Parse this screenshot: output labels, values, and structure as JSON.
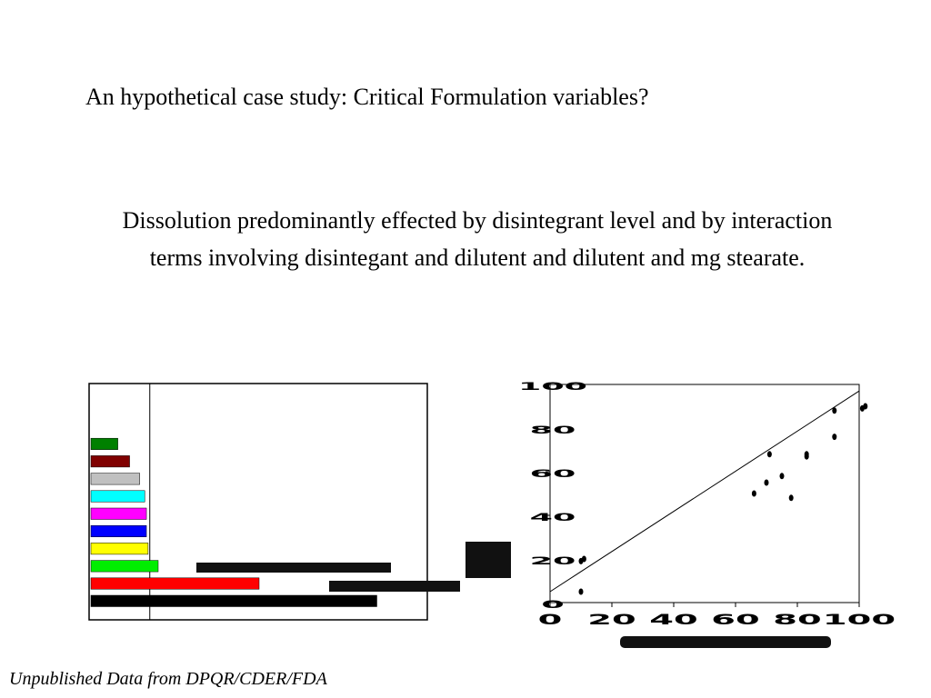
{
  "title": "An hypothetical case study: Critical Formulation variables?",
  "body": "Dissolution predominantly effected by disintegrant level and by interaction terms involving disintegant and dilutent and dilutent and mg stearate.",
  "footer": "Unpublished Data from DPQR/CDER/FDA",
  "chart_data": [
    {
      "type": "bar",
      "orientation": "horizontal",
      "title": "",
      "categories": [
        "",
        "",
        "",
        "",
        "",
        "",
        "",
        "",
        "",
        ""
      ],
      "values": [
        0.85,
        0.5,
        0.2,
        0.17,
        0.165,
        0.165,
        0.16,
        0.145,
        0.115,
        0.08
      ],
      "colors": [
        "#000000",
        "#ff0000",
        "#00ee00",
        "#ffff00",
        "#0000ff",
        "#ff00ff",
        "#00ffff",
        "#c0c0c0",
        "#800000",
        "#008000"
      ],
      "xlim": [
        0,
        1
      ],
      "reference_line": 0.175,
      "grid": false,
      "legend": "none"
    },
    {
      "type": "scatter",
      "title": "",
      "xlabel": "",
      "ylabel": "",
      "xlim": [
        0,
        100
      ],
      "ylim": [
        0,
        100
      ],
      "xticks": [
        "0",
        "20",
        "40",
        "60",
        "80",
        "100"
      ],
      "yticks": [
        "0",
        "20",
        "40",
        "60",
        "80",
        "100"
      ],
      "points": [
        {
          "x": 10,
          "y": 19
        },
        {
          "x": 11,
          "y": 20
        },
        {
          "x": 10,
          "y": 5
        },
        {
          "x": 66,
          "y": 50
        },
        {
          "x": 70,
          "y": 55
        },
        {
          "x": 71,
          "y": 68
        },
        {
          "x": 75,
          "y": 58
        },
        {
          "x": 78,
          "y": 48
        },
        {
          "x": 83,
          "y": 67
        },
        {
          "x": 83,
          "y": 68
        },
        {
          "x": 92,
          "y": 76
        },
        {
          "x": 92,
          "y": 88
        },
        {
          "x": 101,
          "y": 89
        },
        {
          "x": 102,
          "y": 90
        }
      ],
      "fit_line": {
        "x0": 0,
        "y0": 5,
        "x1": 100,
        "y1": 97
      },
      "grid": false,
      "legend": "none"
    }
  ]
}
